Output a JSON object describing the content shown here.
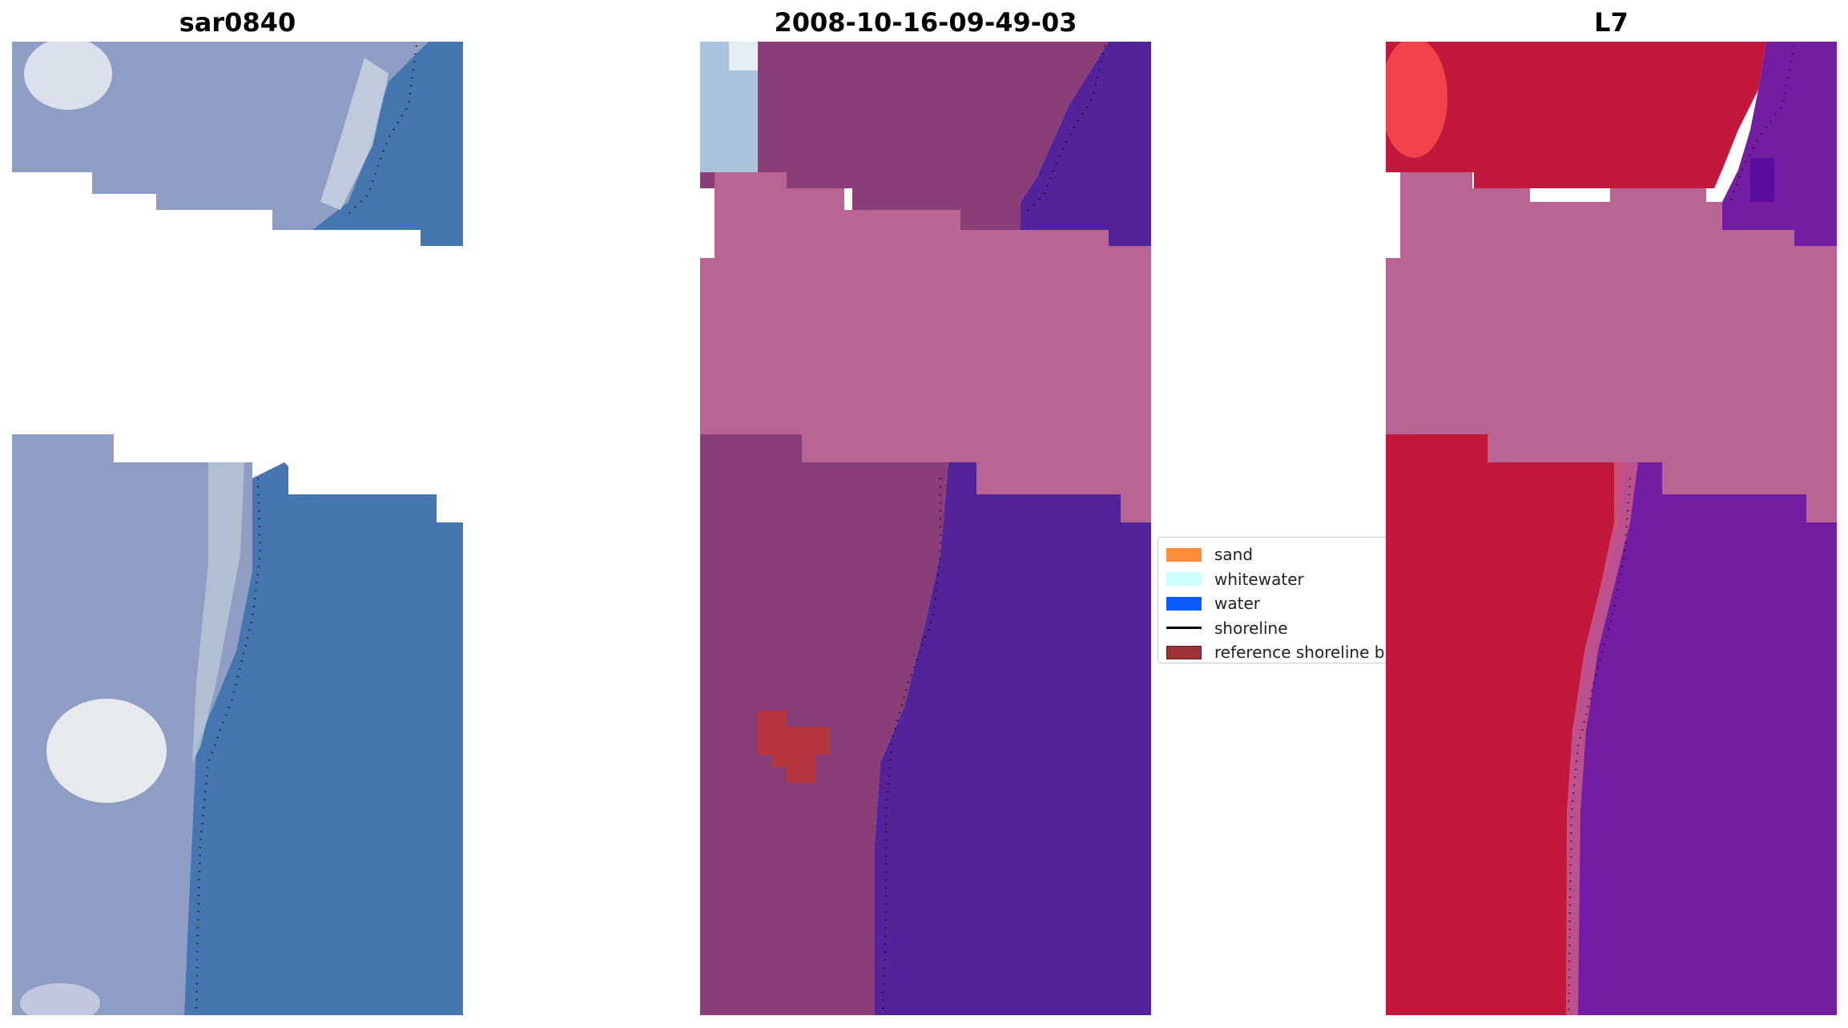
{
  "panels": [
    {
      "title": "sar0840",
      "kind": "rgb-image"
    },
    {
      "title": "2008-10-16-09-49-03",
      "kind": "classified-overlay"
    },
    {
      "title": "L7",
      "kind": "false-color-image"
    }
  ],
  "legend": {
    "items": [
      {
        "label": "sand",
        "type": "patch",
        "color": "#ff8c3a"
      },
      {
        "label": "whitewater",
        "type": "patch",
        "color": "#ccffff"
      },
      {
        "label": "water",
        "type": "patch",
        "color": "#0a5cff"
      },
      {
        "label": "shoreline",
        "type": "line",
        "color": "#000000"
      },
      {
        "label": "reference shoreline b",
        "type": "patch",
        "color": "#9b3339"
      }
    ]
  },
  "colors": {
    "sar_land": "#8f9cc4",
    "sar_water": "#4676b0",
    "sar_bright": "#e8edf4",
    "class_land": "#8a3e78",
    "class_water": "#532399",
    "class_cloud": "#ba6494",
    "class_reference": "#b5363f",
    "l7_land": "#c3183e",
    "l7_water": "#731ea2",
    "l7_cloud": "#ba6494"
  }
}
